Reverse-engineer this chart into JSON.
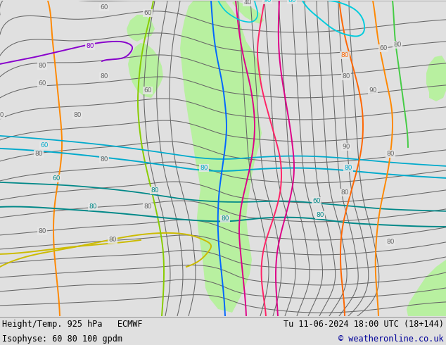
{
  "title_left": "Height/Temp. 925 hPa   ECMWF",
  "title_right": "Tu 11-06-2024 18:00 UTC (18+144)",
  "subtitle_left": "Isophyse: 60 80 100 gpdm",
  "subtitle_right": "© weatheronline.co.uk",
  "bg_color": "#e0e0e0",
  "map_bg_color": "#e8e8e8",
  "green_fill_color": "#b8f0a0",
  "footer_bg": "#c8c8c8",
  "footer_text_color": "#000000",
  "footer_right_color": "#000099",
  "figsize": [
    6.34,
    4.9
  ],
  "dpi": 100,
  "contour_color": "#666666",
  "label_fontsize": 6.5,
  "footer_fontsize": 8.5,
  "colors": {
    "orange": "#ff8800",
    "yellow": "#ccbb00",
    "yellow_green": "#88cc00",
    "teal_dark": "#008888",
    "cyan": "#00aacc",
    "cyan2": "#00ccdd",
    "blue": "#0066ff",
    "purple": "#8800cc",
    "magenta": "#dd0088",
    "pink": "#ff2266",
    "orange2": "#ff6600",
    "green_right": "#44cc44"
  }
}
